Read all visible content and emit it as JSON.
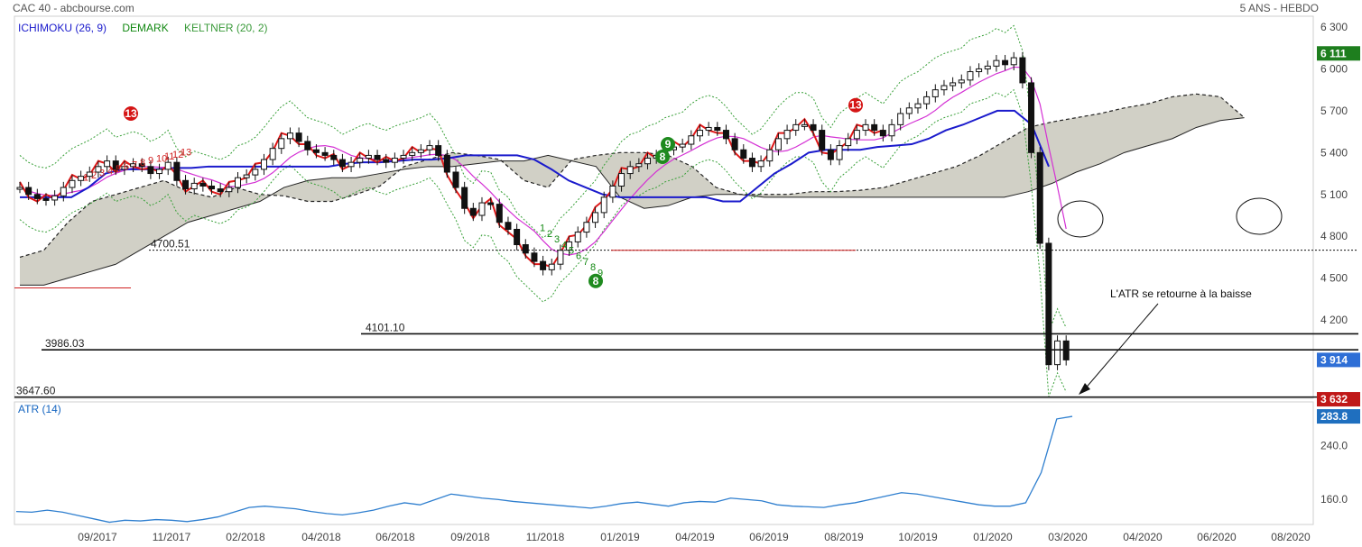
{
  "header": {
    "left": "CAC 40 - abcbourse.com",
    "right": "5 ANS - HEBDO"
  },
  "legend": [
    {
      "text": "ICHIMOKU (26, 9)",
      "color": "#1a1acc"
    },
    {
      "text": "DEMARK",
      "color": "#118811"
    },
    {
      "text": "KELTNER (20, 2)",
      "color": "#3a9a3a"
    }
  ],
  "atr_label": "ATR (14)",
  "annotation": "L'ATR se retourne à la baisse",
  "chart_data": [
    {
      "type": "line",
      "title": "CAC 40",
      "ylim": [
        3600,
        6300
      ],
      "y_ticks": [
        "6 300",
        "6 000",
        "5 700",
        "5 400",
        "5 100",
        "4 800",
        "4 500",
        "4 200"
      ],
      "x_ticks": [
        "09/2017",
        "11/2017",
        "02/2018",
        "04/2018",
        "06/2018",
        "09/2018",
        "11/2018",
        "01/2019",
        "04/2019",
        "06/2019",
        "08/2019",
        "10/2019",
        "01/2020",
        "03/2020",
        "04/2020",
        "06/2020",
        "08/2020"
      ],
      "price_badges": [
        {
          "text": "6 111",
          "color": "#1e7e1e"
        },
        {
          "text": "3 914",
          "color": "#2f6fd6"
        },
        {
          "text": "3 632",
          "color": "#c01818"
        }
      ],
      "levels": [
        {
          "label": "4700.51",
          "value": 4700.51,
          "style": "dotted"
        },
        {
          "label": "4101.10",
          "value": 4101.1,
          "style": "solid"
        },
        {
          "label": "3986.03",
          "value": 3986.03,
          "style": "solid"
        },
        {
          "label": "3647.60",
          "value": 3647.6,
          "style": "solid"
        }
      ],
      "series": [
        {
          "values": [
            5150,
            5100,
            5070,
            5060,
            5090,
            5150,
            5200,
            5230,
            5260,
            5300,
            5340,
            5280,
            5300,
            5320,
            5300,
            5250,
            5280,
            5330,
            5200,
            5140,
            5180,
            5160,
            5140,
            5120,
            5150,
            5220,
            5240,
            5280,
            5350,
            5430,
            5500,
            5540,
            5480,
            5420,
            5400,
            5380,
            5350,
            5300,
            5330,
            5360,
            5380,
            5350,
            5330,
            5360,
            5380,
            5400,
            5420,
            5450,
            5380,
            5260,
            5150,
            5000,
            4950,
            5040,
            5030,
            4900,
            4850,
            4740,
            4680,
            4620,
            4560,
            4600,
            4700,
            4760,
            4830,
            4900,
            4970,
            5080,
            5160,
            5250,
            5300,
            5320,
            5360,
            5380,
            5420,
            5440,
            5460,
            5520,
            5560,
            5580,
            5560,
            5500,
            5420,
            5360,
            5300,
            5340,
            5420,
            5500,
            5560,
            5600,
            5600,
            5560,
            5420,
            5350,
            5450,
            5500,
            5560,
            5600,
            5560,
            5520,
            5600,
            5680,
            5720,
            5750,
            5800,
            5850,
            5880,
            5900,
            5920,
            5980,
            6000,
            6020,
            6060,
            6030,
            6080,
            5900,
            5400,
            4750,
            3880,
            4050,
            3914
          ]
        }
      ],
      "ichimoku": {
        "kijun": [
          5080,
          5080,
          5080,
          5080,
          5150,
          5250,
          5280,
          5280,
          5280,
          5290,
          5290,
          5300,
          5300,
          5300,
          5300,
          5300,
          5300,
          5300,
          5300,
          5320,
          5330,
          5330,
          5340,
          5350,
          5350,
          5360,
          5380,
          5380,
          5380,
          5380,
          5350,
          5280,
          5200,
          5150,
          5100,
          5080,
          5080,
          5080,
          5080,
          5080,
          5080,
          5050,
          5050,
          5150,
          5250,
          5320,
          5400,
          5420,
          5420,
          5420,
          5440,
          5450,
          5460,
          5500,
          5560,
          5600,
          5650,
          5700,
          5700,
          5600,
          5300
        ],
        "kumo_top": [
          4650,
          4700,
          4900,
          5050,
          5100,
          5150,
          5200,
          5120,
          5080,
          5150,
          5100,
          5090,
          5050,
          5050,
          5100,
          5160,
          5300,
          5350,
          5400,
          5380,
          5350,
          5200,
          5150,
          5350,
          5380,
          5400,
          5400,
          5380,
          5300,
          5150,
          5100,
          5100,
          5100,
          5120,
          5120,
          5130,
          5150,
          5200,
          5250,
          5300,
          5380,
          5480,
          5580,
          5620,
          5650,
          5680,
          5720,
          5750,
          5800,
          5820,
          5800,
          5650
        ],
        "kumo_bottom": [
          4450,
          4450,
          4500,
          4550,
          4600,
          4700,
          4800,
          4900,
          4950,
          5000,
          5050,
          5150,
          5200,
          5220,
          5220,
          5250,
          5280,
          5300,
          5300,
          5320,
          5340,
          5340,
          5380,
          5340,
          5300,
          5080,
          5000,
          5020,
          5080,
          5100,
          5100,
          5080,
          5080,
          5080,
          5080,
          5080,
          5080,
          5080,
          5080,
          5080,
          5080,
          5080,
          5120,
          5180,
          5260,
          5320,
          5400,
          5450,
          5500,
          5580,
          5630,
          5650
        ]
      },
      "demark_counts_buy": [
        "1",
        "2",
        "3",
        "4",
        "5",
        "6",
        "7",
        "8",
        "9"
      ],
      "demark_counts_sell": [
        "1",
        "2",
        "3",
        "4",
        "5",
        "6",
        "7",
        "8",
        "9",
        "10",
        "11",
        "12",
        "13"
      ]
    },
    {
      "type": "line",
      "title": "ATR (14)",
      "ylim": [
        120,
        300
      ],
      "y_ticks": [
        "240.0",
        "160.0"
      ],
      "last_value": "283.8",
      "series": [
        {
          "values": [
            142,
            141,
            144,
            141,
            136,
            131,
            126,
            129,
            128,
            130,
            129,
            127,
            130,
            134,
            141,
            148,
            150,
            148,
            146,
            142,
            139,
            137,
            140,
            144,
            150,
            155,
            152,
            160,
            168,
            165,
            162,
            160,
            157,
            155,
            153,
            151,
            149,
            147,
            150,
            154,
            156,
            153,
            150,
            155,
            157,
            156,
            162,
            160,
            158,
            152,
            150,
            149,
            148,
            152,
            155,
            160,
            165,
            170,
            168,
            164,
            160,
            156,
            152,
            150,
            150,
            155,
            200,
            280,
            283.8
          ]
        }
      ]
    }
  ]
}
